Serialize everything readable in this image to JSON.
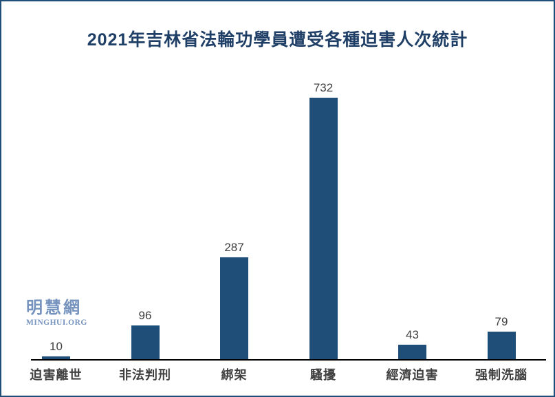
{
  "title": "2021年吉林省法輪功學員遭受各種迫害人次統計",
  "logo": {
    "cjk": "明慧網",
    "latin": "MINGHUI.ORG"
  },
  "colors": {
    "bar": "#1F4E79",
    "title": "#1F3F67",
    "label": "#3F3F3F",
    "axis": "#000000",
    "logo": "#7593BE",
    "border": "#1F4E79"
  },
  "chart_data": {
    "type": "bar",
    "title": "2021年吉林省法輪功學員遭受各種迫害人次統計",
    "categories": [
      "迫害離世",
      "非法判刑",
      "綁架",
      "騷擾",
      "經濟迫害",
      "强制洗腦"
    ],
    "values": [
      10,
      96,
      287,
      732,
      43,
      79
    ],
    "data_labels": [
      "10",
      "96",
      "287",
      "732",
      "43",
      "79"
    ],
    "xlabel": "",
    "ylabel": "",
    "ylim": [
      0,
      800
    ],
    "grid": false,
    "legend": "none",
    "y_axis_visible": false,
    "bar_color": "#1F4E79"
  }
}
